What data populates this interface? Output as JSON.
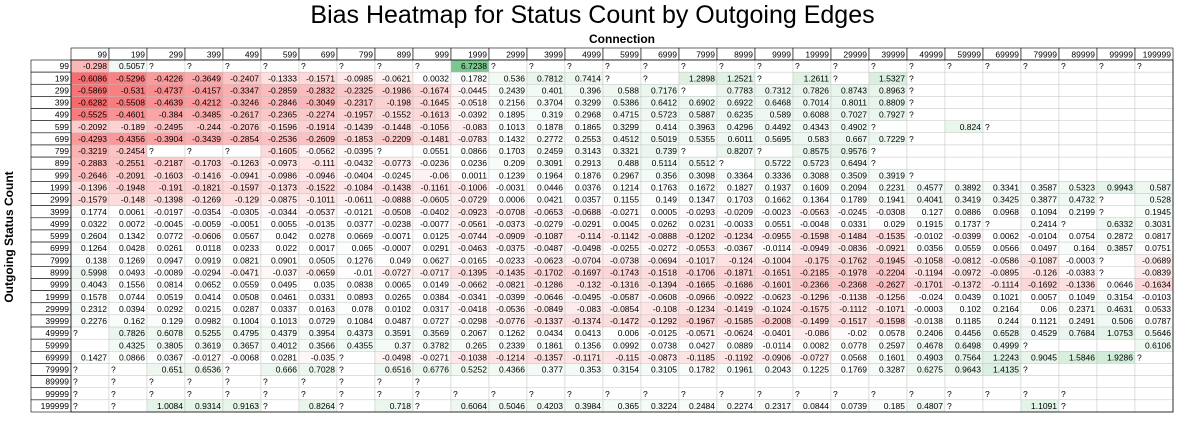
{
  "chart_data": {
    "type": "heatmap",
    "title": "Bias Heatmap for Status Count by Outgoing Edges",
    "xlabel": "Connection",
    "ylabel": "Outgoing Status Count",
    "columns": [
      "99",
      "199",
      "299",
      "399",
      "499",
      "599",
      "699",
      "799",
      "899",
      "999",
      "1999",
      "2999",
      "3999",
      "4999",
      "5999",
      "6999",
      "7999",
      "8999",
      "9999",
      "19999",
      "29999",
      "39999",
      "49999",
      "59999",
      "69999",
      "79999",
      "89999",
      "99999",
      "199999"
    ],
    "rows": [
      "99",
      "199",
      "299",
      "399",
      "499",
      "599",
      "699",
      "799",
      "899",
      "999",
      "1999",
      "2999",
      "3999",
      "4999",
      "5999",
      "6999",
      "7999",
      "8999",
      "9999",
      "19999",
      "29999",
      "39999",
      "49999",
      "59999",
      "69999",
      "79999",
      "89999",
      "99999",
      "199999"
    ],
    "missing_label": "?",
    "values": [
      [
        "-0.298",
        "0.5057",
        "?",
        "?",
        "?",
        "?",
        "?",
        "?",
        "?",
        "?",
        "6.7238",
        "?",
        "?",
        "?",
        "?",
        "?",
        "?",
        "?",
        "?",
        "?",
        "?",
        "?",
        "?",
        "?",
        "?",
        "?",
        "?",
        "?",
        "?"
      ],
      [
        "-0.6086",
        "-0.5296",
        "-0.4226",
        "-0.3649",
        "-0.2407",
        "-0.1333",
        "-0.1571",
        "-0.0985",
        "-0.0621",
        "0.0032",
        "0.1782",
        "0.536",
        "0.7812",
        "0.7414",
        "?",
        "?",
        "1.2898",
        "1.2521",
        "?",
        "1.2611",
        "?",
        "1.5327",
        "?",
        "",
        "",
        "",
        "",
        "",
        ""
      ],
      [
        "-0.5869",
        "-0.531",
        "-0.4737",
        "-0.4157",
        "-0.3347",
        "-0.2859",
        "-0.2832",
        "-0.2325",
        "-0.1986",
        "-0.1674",
        "-0.0445",
        "0.2439",
        "0.401",
        "0.396",
        "0.588",
        "0.7176",
        "?",
        "0.7783",
        "0.7312",
        "0.7826",
        "0.8743",
        "0.8963",
        "?",
        "",
        "",
        "",
        "",
        "",
        ""
      ],
      [
        "-0.6282",
        "-0.5508",
        "-0.4639",
        "-0.4212",
        "-0.3246",
        "-0.2846",
        "-0.3049",
        "-0.2317",
        "-0.198",
        "-0.1645",
        "-0.0518",
        "0.2156",
        "0.3704",
        "0.3299",
        "0.5386",
        "0.6412",
        "0.6902",
        "0.6922",
        "0.6468",
        "0.7014",
        "0.8011",
        "0.8809",
        "?",
        "",
        "",
        "",
        "",
        "",
        ""
      ],
      [
        "-0.5525",
        "-0.4601",
        "-0.384",
        "-0.3485",
        "-0.2617",
        "-0.2365",
        "-0.2274",
        "-0.1957",
        "-0.1552",
        "-0.1613",
        "-0.0392",
        "0.1895",
        "0.319",
        "0.2968",
        "0.4715",
        "0.5723",
        "0.5887",
        "0.6235",
        "0.589",
        "0.6088",
        "0.7027",
        "0.7927",
        "?",
        "",
        "",
        "",
        "",
        "",
        ""
      ],
      [
        "-0.2092",
        "-0.189",
        "-0.2495",
        "-0.244",
        "-0.2076",
        "-0.1596",
        "-0.1914",
        "-0.1439",
        "-0.1448",
        "-0.1056",
        "-0.083",
        "0.1013",
        "0.1878",
        "0.1865",
        "0.3299",
        "0.414",
        "0.3963",
        "0.4296",
        "0.4492",
        "0.4343",
        "0.4902",
        "?",
        "",
        "0.824",
        "?",
        "",
        "",
        "",
        ""
      ],
      [
        "-0.4293",
        "-0.4356",
        "-0.3904",
        "-0.3439",
        "-0.2854",
        "-0.2536",
        "-0.2609",
        "-0.1853",
        "-0.2209",
        "-0.1481",
        "-0.0783",
        "0.1432",
        "0.2772",
        "0.2553",
        "0.4512",
        "0.5019",
        "0.5355",
        "0.6011",
        "0.5695",
        "0.583",
        "0.667",
        "0.7229",
        "?",
        "",
        "",
        "",
        "",
        "",
        ""
      ],
      [
        "-0.3219",
        "-0.2454",
        "?",
        "?",
        "?",
        "-0.1605",
        "-0.0562",
        "-0.0395",
        "?",
        "0.0551",
        "0.0866",
        "0.1703",
        "0.2459",
        "0.3143",
        "0.3321",
        "0.739",
        "?",
        "0.8207",
        "?",
        "0.8575",
        "0.9576",
        "?",
        "",
        "",
        "",
        "",
        "",
        "",
        ""
      ],
      [
        "-0.2883",
        "-0.2551",
        "-0.2187",
        "-0.1703",
        "-0.1263",
        "-0.0973",
        "-0.111",
        "-0.0432",
        "-0.0773",
        "-0.0236",
        "0.0236",
        "0.209",
        "0.3091",
        "0.2913",
        "0.488",
        "0.5114",
        "0.5512",
        "?",
        "0.5722",
        "0.5723",
        "0.6494",
        "?",
        "",
        "",
        "",
        "",
        "",
        "",
        ""
      ],
      [
        "-0.2646",
        "-0.2091",
        "-0.1603",
        "-0.1416",
        "-0.0941",
        "-0.0986",
        "-0.0946",
        "-0.0404",
        "-0.0245",
        "-0.06",
        "0.0011",
        "0.1239",
        "0.1964",
        "0.1876",
        "0.2967",
        "0.356",
        "0.3098",
        "0.3364",
        "0.3336",
        "0.3088",
        "0.3509",
        "0.3919",
        "?",
        "",
        "",
        "",
        "",
        "",
        ""
      ],
      [
        "-0.1396",
        "-0.1948",
        "-0.191",
        "-0.1821",
        "-0.1597",
        "-0.1373",
        "-0.1522",
        "-0.1084",
        "-0.1438",
        "-0.1161",
        "-0.1006",
        "-0.0031",
        "0.0446",
        "0.0376",
        "0.1214",
        "0.1763",
        "0.1672",
        "0.1827",
        "0.1937",
        "0.1609",
        "0.2094",
        "0.2231",
        "0.4577",
        "0.3892",
        "0.3341",
        "0.3587",
        "0.5323",
        "0.9943",
        "0.587"
      ],
      [
        "-0.1579",
        "-0.148",
        "-0.1398",
        "-0.1269",
        "-0.129",
        "-0.0875",
        "-0.1011",
        "-0.0611",
        "-0.0888",
        "-0.0605",
        "-0.0729",
        "0.0006",
        "0.0421",
        "0.0357",
        "0.1155",
        "0.149",
        "0.1347",
        "0.1703",
        "0.1662",
        "0.1364",
        "0.1789",
        "0.1941",
        "0.4041",
        "0.3419",
        "0.3425",
        "0.3877",
        "0.4732",
        "?",
        "0.528"
      ],
      [
        "0.1774",
        "0.0061",
        "-0.0197",
        "-0.0354",
        "-0.0305",
        "-0.0344",
        "-0.0537",
        "-0.0121",
        "-0.0508",
        "-0.0402",
        "-0.0923",
        "-0.0708",
        "-0.0653",
        "-0.0688",
        "-0.0271",
        "0.0005",
        "-0.0293",
        "-0.0209",
        "-0.0023",
        "-0.0563",
        "-0.0245",
        "-0.0308",
        "0.127",
        "0.0886",
        "0.0968",
        "0.1094",
        "0.2199",
        "?",
        "0.1945"
      ],
      [
        "0.0322",
        "0.0072",
        "-0.0045",
        "-0.0059",
        "-0.0051",
        "0.0055",
        "-0.0135",
        "0.0377",
        "-0.0238",
        "-0.0077",
        "-0.0561",
        "-0.0373",
        "-0.0279",
        "-0.0291",
        "0.0045",
        "0.0262",
        "0.0231",
        "-0.0033",
        "0.0551",
        "-0.0048",
        "0.0331",
        "0.029",
        "0.1915",
        "0.1737",
        "?",
        "0.2414",
        "?",
        "0.6332",
        "0.3031"
      ],
      [
        "0.2604",
        "0.1342",
        "0.0772",
        "-0.0606",
        "0.0567",
        "0.042",
        "0.0278",
        "0.0669",
        "-0.0071",
        "0.0125",
        "-0.0744",
        "-0.0909",
        "-0.1087",
        "-0.114",
        "-0.1142",
        "-0.0888",
        "-0.1202",
        "-0.1234",
        "-0.0955",
        "-0.1598",
        "-0.1484",
        "-0.1535",
        "-0.0102",
        "-0.0399",
        "0.0062",
        "-0.0104",
        "0.0754",
        "0.2872",
        "0.0817"
      ],
      [
        "0.1264",
        "0.0428",
        "0.0261",
        "0.0118",
        "0.0233",
        "0.022",
        "0.0017",
        "0.065",
        "-0.0007",
        "0.0291",
        "-0.0463",
        "-0.0375",
        "-0.0487",
        "-0.0498",
        "-0.0255",
        "-0.0272",
        "-0.0553",
        "-0.0367",
        "-0.0114",
        "-0.0949",
        "-0.0836",
        "-0.0921",
        "0.0356",
        "0.0559",
        "0.0566",
        "0.0497",
        "0.164",
        "0.3857",
        "0.0751"
      ],
      [
        "0.138",
        "0.1269",
        "0.0947",
        "0.0919",
        "0.0821",
        "0.0901",
        "0.0505",
        "0.1276",
        "0.049",
        "0.0627",
        "-0.0165",
        "-0.0233",
        "-0.0623",
        "-0.0704",
        "-0.0738",
        "-0.0694",
        "-0.1017",
        "-0.124",
        "-0.1004",
        "-0.175",
        "-0.1762",
        "-0.1945",
        "-0.1058",
        "-0.0812",
        "-0.0586",
        "-0.1087",
        "-0.0003",
        "?",
        "-0.0689"
      ],
      [
        "0.5998",
        "0.0493",
        "-0.0089",
        "-0.0294",
        "-0.0471",
        "-0.037",
        "-0.0659",
        "-0.01",
        "-0.0727",
        "-0.0717",
        "-0.1395",
        "-0.1435",
        "-0.1702",
        "-0.1697",
        "-0.1743",
        "-0.1518",
        "-0.1706",
        "-0.1871",
        "-0.1651",
        "-0.2185",
        "-0.1978",
        "-0.2204",
        "-0.1194",
        "-0.0972",
        "-0.0895",
        "-0.126",
        "-0.0383",
        "?",
        "-0.0839"
      ],
      [
        "0.4043",
        "0.1556",
        "0.0814",
        "0.0652",
        "0.0559",
        "0.0495",
        "0.035",
        "0.0838",
        "0.0065",
        "0.0149",
        "-0.0662",
        "-0.0821",
        "-0.1286",
        "-0.132",
        "-0.1316",
        "-0.1394",
        "-0.1665",
        "-0.1686",
        "-0.1601",
        "-0.2366",
        "-0.2368",
        "-0.2627",
        "-0.1701",
        "-0.1372",
        "-0.1114",
        "-0.1692",
        "-0.1336",
        "0.0646",
        "-0.1634"
      ],
      [
        "0.1578",
        "0.0744",
        "0.0519",
        "0.0414",
        "0.0508",
        "0.0461",
        "0.0331",
        "0.0893",
        "0.0265",
        "0.0384",
        "-0.0341",
        "-0.0399",
        "-0.0646",
        "-0.0495",
        "-0.0587",
        "-0.0608",
        "-0.0966",
        "-0.0922",
        "-0.0623",
        "-0.1296",
        "-0.1138",
        "-0.1256",
        "-0.024",
        "0.0439",
        "0.1021",
        "0.0057",
        "0.1049",
        "0.3154",
        "-0.0103"
      ],
      [
        "0.2312",
        "0.0394",
        "0.0292",
        "0.0215",
        "0.0287",
        "0.0337",
        "0.0163",
        "0.078",
        "0.0102",
        "0.0317",
        "-0.0418",
        "-0.0536",
        "-0.0849",
        "-0.083",
        "-0.0854",
        "-0.108",
        "-0.1234",
        "-0.1419",
        "-0.1024",
        "-0.1575",
        "-0.1112",
        "-0.1071",
        "-0.0003",
        "0.102",
        "0.2164",
        "0.06",
        "0.2371",
        "0.4631",
        "0.0533"
      ],
      [
        "0.2276",
        "0.162",
        "0.129",
        "0.0982",
        "0.1004",
        "0.1013",
        "0.0729",
        "0.1084",
        "0.0487",
        "0.0727",
        "-0.0298",
        "-0.0776",
        "-0.1337",
        "-0.1374",
        "-0.1472",
        "-0.1292",
        "-0.1967",
        "-0.1585",
        "-0.2008",
        "-0.1499",
        "-0.1517",
        "-0.1598",
        "-0.0138",
        "0.1185",
        "0.244",
        "0.1121",
        "0.2491",
        "0.506",
        "0.0787"
      ],
      [
        "?",
        "0.7826",
        "0.6078",
        "0.5255",
        "0.4795",
        "0.4379",
        "0.3954",
        "0.4373",
        "0.3591",
        "0.3569",
        "0.2067",
        "0.1262",
        "0.0434",
        "0.0413",
        "0.006",
        "-0.0125",
        "-0.0571",
        "-0.0624",
        "-0.0401",
        "-0.086",
        "-0.02",
        "0.0578",
        "0.2406",
        "0.4456",
        "0.6528",
        "0.4529",
        "0.7684",
        "1.0753",
        "0.5646"
      ],
      [
        "",
        "0.4325",
        "0.3805",
        "0.3619",
        "0.3657",
        "0.4012",
        "0.3566",
        "0.4355",
        "0.37",
        "0.3782",
        "0.265",
        "0.2339",
        "0.1861",
        "0.1356",
        "0.0992",
        "0.0738",
        "0.0427",
        "0.0889",
        "-0.0114",
        "0.0082",
        "0.0778",
        "0.2597",
        "0.4678",
        "0.6498",
        "0.4999",
        "?",
        "",
        "",
        "0.6106"
      ],
      [
        "0.1427",
        "0.0866",
        "0.0367",
        "-0.0127",
        "-0.0068",
        "0.0281",
        "-0.035",
        "?",
        "-0.0498",
        "-0.0271",
        "-0.1038",
        "-0.1214",
        "-0.1357",
        "-0.1171",
        "-0.115",
        "-0.0873",
        "-0.1185",
        "-0.1192",
        "-0.0906",
        "-0.0727",
        "0.0568",
        "0.1601",
        "0.4903",
        "0.7564",
        "1.2243",
        "0.9045",
        "1.5846",
        "1.9286",
        "?"
      ],
      [
        "?",
        "?",
        "0.651",
        "0.6536",
        "?",
        "0.666",
        "0.7028",
        "?",
        "0.6516",
        "0.6776",
        "0.5252",
        "0.4366",
        "0.377",
        "0.353",
        "0.3154",
        "0.3105",
        "0.1782",
        "0.1961",
        "0.2043",
        "0.1225",
        "0.1769",
        "0.3287",
        "0.6275",
        "0.9643",
        "1.4135",
        "?",
        "",
        "",
        ""
      ],
      [
        "?",
        "?",
        "?",
        "?",
        "?",
        "?",
        "?",
        "?",
        "?",
        "?",
        "",
        "",
        "",
        "",
        "",
        "",
        "",
        "",
        "",
        "",
        "",
        "",
        "",
        "",
        "",
        "",
        "",
        "",
        ""
      ],
      [
        "?",
        "?",
        "?",
        "?",
        "?",
        "?",
        "?",
        "?",
        "?",
        "?",
        "?",
        "?",
        "?",
        "?",
        "?",
        "?",
        "?",
        "?",
        "?",
        "?",
        "?",
        "?",
        "?",
        "?",
        "?",
        "?",
        "?",
        "",
        ""
      ],
      [
        "?",
        "?",
        "1.0084",
        "0.9314",
        "0.9163",
        "?",
        "0.8264",
        "?",
        "0.718",
        "?",
        "0.6064",
        "0.5046",
        "0.4203",
        "0.3984",
        "0.365",
        "0.3224",
        "0.2484",
        "0.2274",
        "0.2317",
        "0.0844",
        "0.0739",
        "0.185",
        "0.4807",
        "?",
        "",
        "1.1091",
        "?",
        "",
        ""
      ]
    ],
    "color_scale": {
      "negative": "#f8696b",
      "zero": "#ffffff",
      "positive": "#63be7b"
    },
    "grid": true
  }
}
